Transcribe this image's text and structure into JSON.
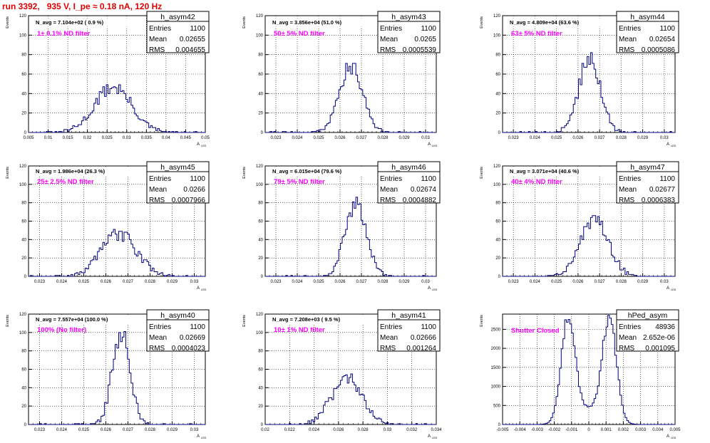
{
  "page": {
    "title": "run 3392,   935 V, I_pe ≈ 0.18 nA, 120 Hz"
  },
  "colors": {
    "hist": "#000080",
    "note": "#ff00ff",
    "title": "#e00000",
    "grid": "#000000"
  },
  "chart_data": [
    {
      "type": "histogram",
      "hist_name": "h_asym42",
      "navg": "N_avg = 7.104e+02 ( 0.9 %)",
      "note": "1± 0.1% ND filter",
      "stats": [
        [
          "Entries",
          "1100"
        ],
        [
          "Mean",
          "0.02655"
        ],
        [
          "RMS",
          "0.004655"
        ]
      ],
      "xlim": [
        0.005,
        0.05
      ],
      "ylim": [
        0,
        120
      ],
      "xticks": [
        0.005,
        0.01,
        0.015,
        0.02,
        0.025,
        0.03,
        0.035,
        0.04,
        0.045,
        0.05
      ],
      "xticklabels": [
        "0.005",
        "0.01",
        "0.015",
        "0.02",
        "0.025",
        "0.03",
        "0.035",
        "0.04",
        "0.045",
        "0.05"
      ],
      "yticks": [
        0,
        20,
        40,
        60,
        80,
        100,
        120
      ],
      "ylabel": "Events",
      "xlabel": "A",
      "xlabel_sub": "LED",
      "gauss": {
        "mean": 0.02655,
        "sigma": 0.004655,
        "peak": 47,
        "n": 1100
      }
    },
    {
      "type": "histogram",
      "hist_name": "h_asym43",
      "navg": "N_avg = 3.856e+04 (51.0 %)",
      "note": "50± 5% ND filter",
      "stats": [
        [
          "Entries",
          "1100"
        ],
        [
          "Mean",
          "0.0265"
        ],
        [
          "RMS",
          "0.0005539"
        ]
      ],
      "xlim": [
        0.0225,
        0.0305
      ],
      "ylim": [
        0,
        120
      ],
      "xticks": [
        0.023,
        0.024,
        0.025,
        0.026,
        0.027,
        0.028,
        0.029,
        0.03
      ],
      "xticklabels": [
        "0.023",
        "0.024",
        "0.025",
        "0.026",
        "0.027",
        "0.028",
        "0.029",
        "0.03"
      ],
      "yticks": [
        0,
        20,
        40,
        60,
        80,
        100,
        120
      ],
      "ylabel": "Events",
      "xlabel": "A",
      "xlabel_sub": "LED",
      "gauss": {
        "mean": 0.0265,
        "sigma": 0.00055,
        "peak": 68,
        "n": 1100
      }
    },
    {
      "type": "histogram",
      "hist_name": "h_asym44",
      "navg": "N_avg = 4.809e+04 (63.6 %)",
      "note": "63± 5% ND filter",
      "stats": [
        [
          "Entries",
          "1100"
        ],
        [
          "Mean",
          "0.02654"
        ],
        [
          "RMS",
          "0.0005086"
        ]
      ],
      "xlim": [
        0.0225,
        0.0305
      ],
      "ylim": [
        0,
        120
      ],
      "xticks": [
        0.023,
        0.024,
        0.025,
        0.026,
        0.027,
        0.028,
        0.029,
        0.03
      ],
      "xticklabels": [
        "0.023",
        "0.024",
        "0.025",
        "0.026",
        "0.027",
        "0.028",
        "0.029",
        "0.03"
      ],
      "yticks": [
        0,
        20,
        40,
        60,
        80,
        100,
        120
      ],
      "ylabel": "Events",
      "xlabel": "A",
      "xlabel_sub": "LED",
      "gauss": {
        "mean": 0.02654,
        "sigma": 0.0005,
        "peak": 78,
        "n": 1100
      }
    },
    {
      "type": "histogram",
      "hist_name": "h_asym45",
      "navg": "N_avg = 1.986e+04 (26.3 %)",
      "note": "25± 2.5% ND filter",
      "stats": [
        [
          "Entries",
          "1100"
        ],
        [
          "Mean",
          "0.0266"
        ],
        [
          "RMS",
          "0.0007966"
        ]
      ],
      "xlim": [
        0.0225,
        0.0305
      ],
      "ylim": [
        0,
        120
      ],
      "xticks": [
        0.023,
        0.024,
        0.025,
        0.026,
        0.027,
        0.028,
        0.029,
        0.03
      ],
      "xticklabels": [
        "0.023",
        "0.024",
        "0.025",
        "0.026",
        "0.027",
        "0.028",
        "0.029",
        "0.03"
      ],
      "yticks": [
        0,
        20,
        40,
        60,
        80,
        100,
        120
      ],
      "ylabel": "Events",
      "xlabel": "A",
      "xlabel_sub": "LED",
      "gauss": {
        "mean": 0.0266,
        "sigma": 0.0008,
        "peak": 46,
        "n": 1100
      }
    },
    {
      "type": "histogram",
      "hist_name": "h_asym46",
      "navg": "N_avg = 6.015e+04 (79.6 %)",
      "note": "79± 5% ND filter",
      "stats": [
        [
          "Entries",
          "1100"
        ],
        [
          "Mean",
          "0.02674"
        ],
        [
          "RMS",
          "0.0004882"
        ]
      ],
      "xlim": [
        0.0225,
        0.0305
      ],
      "ylim": [
        0,
        120
      ],
      "xticks": [
        0.023,
        0.024,
        0.025,
        0.026,
        0.027,
        0.028,
        0.029,
        0.03
      ],
      "xticklabels": [
        "0.023",
        "0.024",
        "0.025",
        "0.026",
        "0.027",
        "0.028",
        "0.029",
        "0.03"
      ],
      "yticks": [
        0,
        20,
        40,
        60,
        80,
        100,
        120
      ],
      "ylabel": "Events",
      "xlabel": "A",
      "xlabel_sub": "LED",
      "gauss": {
        "mean": 0.02674,
        "sigma": 0.00049,
        "peak": 80,
        "n": 1100
      }
    },
    {
      "type": "histogram",
      "hist_name": "h_asym47",
      "navg": "N_avg = 3.071e+04 (40.6 %)",
      "note": "40± 4% ND filter",
      "stats": [
        [
          "Entries",
          "1100"
        ],
        [
          "Mean",
          "0.02677"
        ],
        [
          "RMS",
          "0.0006383"
        ]
      ],
      "xlim": [
        0.0225,
        0.0305
      ],
      "ylim": [
        0,
        120
      ],
      "xticks": [
        0.023,
        0.024,
        0.025,
        0.026,
        0.027,
        0.028,
        0.029,
        0.03
      ],
      "xticklabels": [
        "0.023",
        "0.024",
        "0.025",
        "0.026",
        "0.027",
        "0.028",
        "0.029",
        "0.03"
      ],
      "yticks": [
        0,
        20,
        40,
        60,
        80,
        100,
        120
      ],
      "ylabel": "Events",
      "xlabel": "A",
      "xlabel_sub": "LED",
      "gauss": {
        "mean": 0.02677,
        "sigma": 0.00064,
        "peak": 64,
        "n": 1100
      }
    },
    {
      "type": "histogram",
      "hist_name": "h_asym40",
      "navg": "N_avg = 7.557e+04 (100.0 %)",
      "note": "100% (No filter)",
      "stats": [
        [
          "Entries",
          "1100"
        ],
        [
          "Mean",
          "0.02669"
        ],
        [
          "RMS",
          "0.0004023"
        ]
      ],
      "xlim": [
        0.0225,
        0.0305
      ],
      "ylim": [
        0,
        120
      ],
      "xticks": [
        0.023,
        0.024,
        0.025,
        0.026,
        0.027,
        0.028,
        0.029,
        0.03
      ],
      "xticklabels": [
        "0.023",
        "0.024",
        "0.025",
        "0.026",
        "0.027",
        "0.028",
        "0.029",
        "0.03"
      ],
      "yticks": [
        0,
        20,
        40,
        60,
        80,
        100,
        120
      ],
      "ylabel": "Events",
      "xlabel": "A",
      "xlabel_sub": "LED",
      "gauss": {
        "mean": 0.02669,
        "sigma": 0.0004,
        "peak": 100,
        "n": 1100
      }
    },
    {
      "type": "histogram",
      "hist_name": "h_asym41",
      "navg": "N_avg = 7.208e+03 ( 9.5 %)",
      "note": "10± 1% ND filter",
      "stats": [
        [
          "Entries",
          "1100"
        ],
        [
          "Mean",
          "0.02666"
        ],
        [
          "RMS",
          "0.001264"
        ]
      ],
      "xlim": [
        0.02,
        0.034
      ],
      "ylim": [
        0,
        120
      ],
      "xticks": [
        0.02,
        0.022,
        0.024,
        0.026,
        0.028,
        0.03,
        0.032,
        0.034
      ],
      "xticklabels": [
        "0.02",
        "0.022",
        "0.024",
        "0.026",
        "0.028",
        "0.03",
        "0.032",
        "0.034"
      ],
      "yticks": [
        0,
        20,
        40,
        60,
        80,
        100,
        120
      ],
      "ylabel": "Events",
      "xlabel": "A",
      "xlabel_sub": "LED",
      "gauss": {
        "mean": 0.02666,
        "sigma": 0.00126,
        "peak": 50,
        "n": 1100
      }
    },
    {
      "type": "histogram",
      "hist_name": "hPed_asym",
      "navg": "",
      "note": "Shutter Closed",
      "stats": [
        [
          "Entries",
          "48936"
        ],
        [
          "Mean",
          "2.652e-06"
        ],
        [
          "RMS",
          "0.001095"
        ]
      ],
      "xlim": [
        -0.005,
        0.005
      ],
      "ylim": [
        0,
        2900
      ],
      "xticks": [
        -0.005,
        -0.004,
        -0.003,
        -0.002,
        -0.001,
        0,
        0.001,
        0.002,
        0.003,
        0.004,
        0.005
      ],
      "xticklabels": [
        "-0.005",
        "-0.004",
        "-0.003",
        "-0.002",
        "-0.001",
        "0",
        "0.001",
        "0.002",
        "0.003",
        "0.004",
        "0.005"
      ],
      "yticks": [
        0,
        500,
        1000,
        1500,
        2000,
        2500
      ],
      "ylabel": "Events",
      "xlabel": "A",
      "xlabel_sub": "LED",
      "bimodal": {
        "m1": -0.0012,
        "m2": 0.0012,
        "sigma": 0.0004,
        "peak": 2700,
        "valley": 650
      }
    }
  ]
}
